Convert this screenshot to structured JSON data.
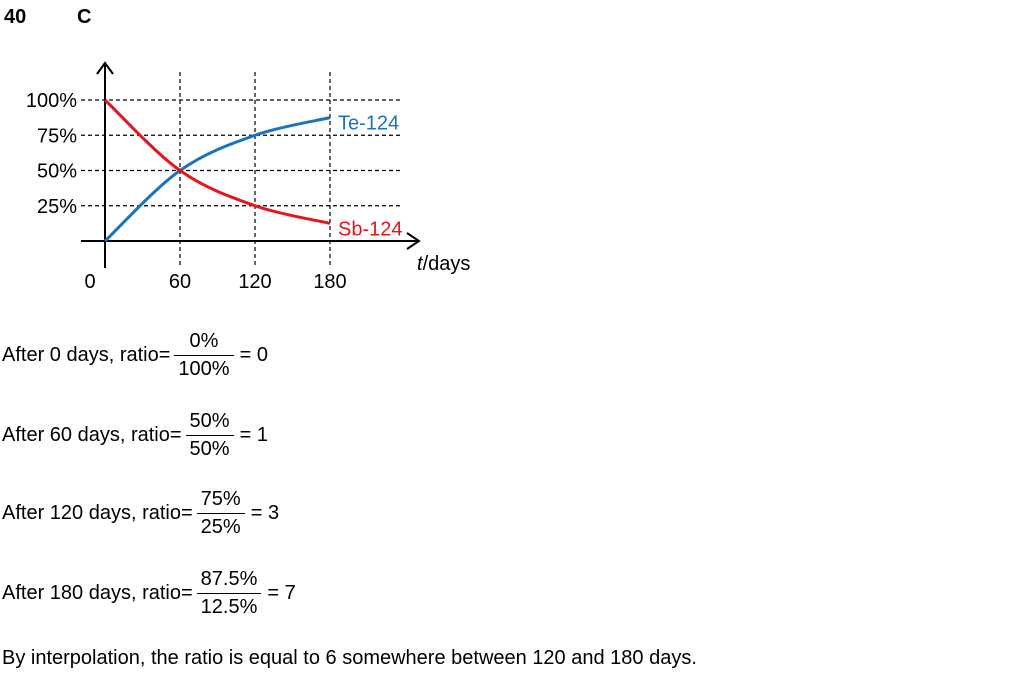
{
  "header": {
    "question_number": "40",
    "answer": "C"
  },
  "chart_data": {
    "type": "line",
    "x": [
      0,
      60,
      120,
      180
    ],
    "xticks": [
      "0",
      "60",
      "120",
      "180"
    ],
    "yticks": [
      "25%",
      "50%",
      "75%",
      "100%"
    ],
    "xlabel_italic": "t",
    "xlabel_rest": "/days",
    "series": [
      {
        "name": "Te-124",
        "color": "#1a73c0",
        "values": [
          0,
          50,
          75,
          87.5
        ]
      },
      {
        "name": "Sb-124",
        "color": "#e8141b",
        "values": [
          100,
          50,
          25,
          12.5
        ]
      }
    ],
    "xlim": [
      0,
      180
    ],
    "ylim": [
      0,
      100
    ]
  },
  "steps": [
    {
      "prefix": "After 0 days, ratio=",
      "numerator": "0%",
      "denominator": "100%",
      "result": "= 0"
    },
    {
      "prefix": "After 60 days, ratio=",
      "numerator": "50%",
      "denominator": "50%",
      "result": "= 1"
    },
    {
      "prefix": "After 120 days, ratio=",
      "numerator": "75%",
      "denominator": "25%",
      "result": "= 3"
    },
    {
      "prefix": "After 180 days, ratio=",
      "numerator": "87.5%",
      "denominator": "12.5%",
      "result": "= 7"
    }
  ],
  "conclusion": "By interpolation, the ratio is equal to 6 somewhere between 120 and 180 days."
}
